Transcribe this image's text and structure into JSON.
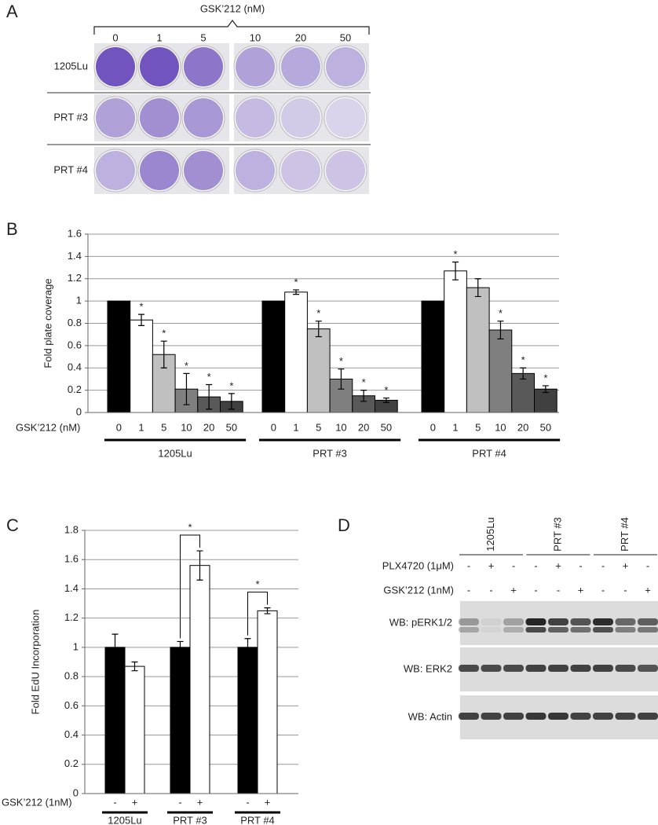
{
  "panel_a": {
    "label": "A",
    "title": "GSK’212 (nM)",
    "columns": [
      "0",
      "1",
      "5",
      "10",
      "20",
      "50"
    ],
    "rows": [
      "1205Lu",
      "PRT #3",
      "PRT #4"
    ]
  },
  "chart_data": [
    {
      "type": "bar",
      "panel_label": "B",
      "ylabel": "Fold plate coverage",
      "xlabel": "GSK’212 (nM)",
      "groups": [
        "1205Lu",
        "PRT #3",
        "PRT #4"
      ],
      "ylim": [
        0,
        1.6
      ],
      "yticks": [
        0,
        0.2,
        0.4,
        0.6,
        0.8,
        1,
        1.2,
        1.4,
        1.6
      ],
      "grid": true,
      "significance_label": "*",
      "series": [
        {
          "name": "0",
          "color": "#000000",
          "values": [
            1,
            1,
            1
          ],
          "errors": [
            null,
            null,
            null
          ],
          "significant": [
            false,
            false,
            false
          ]
        },
        {
          "name": "1",
          "color": "#ffffff",
          "values": [
            0.83,
            1.08,
            1.27
          ],
          "errors": [
            0.05,
            0.02,
            0.08
          ],
          "significant": [
            true,
            true,
            true
          ]
        },
        {
          "name": "5",
          "color": "#c0c0c0",
          "values": [
            0.52,
            0.75,
            1.12
          ],
          "errors": [
            0.12,
            0.07,
            0.08
          ],
          "significant": [
            true,
            true,
            false
          ]
        },
        {
          "name": "10",
          "color": "#7f7f7f",
          "values": [
            0.21,
            0.3,
            0.74
          ],
          "errors": [
            0.14,
            0.09,
            0.08
          ],
          "significant": [
            true,
            true,
            true
          ]
        },
        {
          "name": "20",
          "color": "#595959",
          "values": [
            0.14,
            0.15,
            0.35
          ],
          "errors": [
            0.11,
            0.05,
            0.05
          ],
          "significant": [
            true,
            true,
            true
          ]
        },
        {
          "name": "50",
          "color": "#404040",
          "values": [
            0.1,
            0.11,
            0.21
          ],
          "errors": [
            0.07,
            0.02,
            0.03
          ],
          "significant": [
            true,
            true,
            true
          ]
        }
      ]
    },
    {
      "type": "bar",
      "panel_label": "C",
      "ylabel": "Fold EdU Incorporation",
      "xlabel": "GSK’212 (1nM)",
      "groups": [
        "1205Lu",
        "PRT #3",
        "PRT #4"
      ],
      "ylim": [
        0,
        1.8
      ],
      "yticks": [
        0,
        0.2,
        0.4,
        0.6,
        0.8,
        1,
        1.2,
        1.4,
        1.6,
        1.8
      ],
      "grid": true,
      "significance_label": "*",
      "significant_groups": [
        false,
        true,
        true
      ],
      "series": [
        {
          "name": "-",
          "color": "#000000",
          "values": [
            1,
            1,
            1
          ],
          "errors": [
            0.09,
            0.04,
            0.06
          ]
        },
        {
          "name": "+",
          "color": "#ffffff",
          "values": [
            0.87,
            1.56,
            1.25
          ],
          "errors": [
            0.03,
            0.1,
            0.02
          ]
        }
      ]
    }
  ],
  "panel_d": {
    "label": "D",
    "cell_lines": [
      "1205Lu",
      "PRT #3",
      "PRT #4"
    ],
    "treatments": [
      {
        "name": "PLX4720 (1μM)",
        "signs": [
          "-",
          "+",
          "-",
          "-",
          "+",
          "-",
          "-",
          "+",
          "-"
        ]
      },
      {
        "name": "GSK’212 (1nM)",
        "signs": [
          "-",
          "-",
          "+",
          "-",
          "-",
          "+",
          "-",
          "-",
          "+"
        ]
      }
    ],
    "blots": [
      "WB: pERK1/2",
      "WB: ERK2",
      "WB: Actin"
    ]
  }
}
